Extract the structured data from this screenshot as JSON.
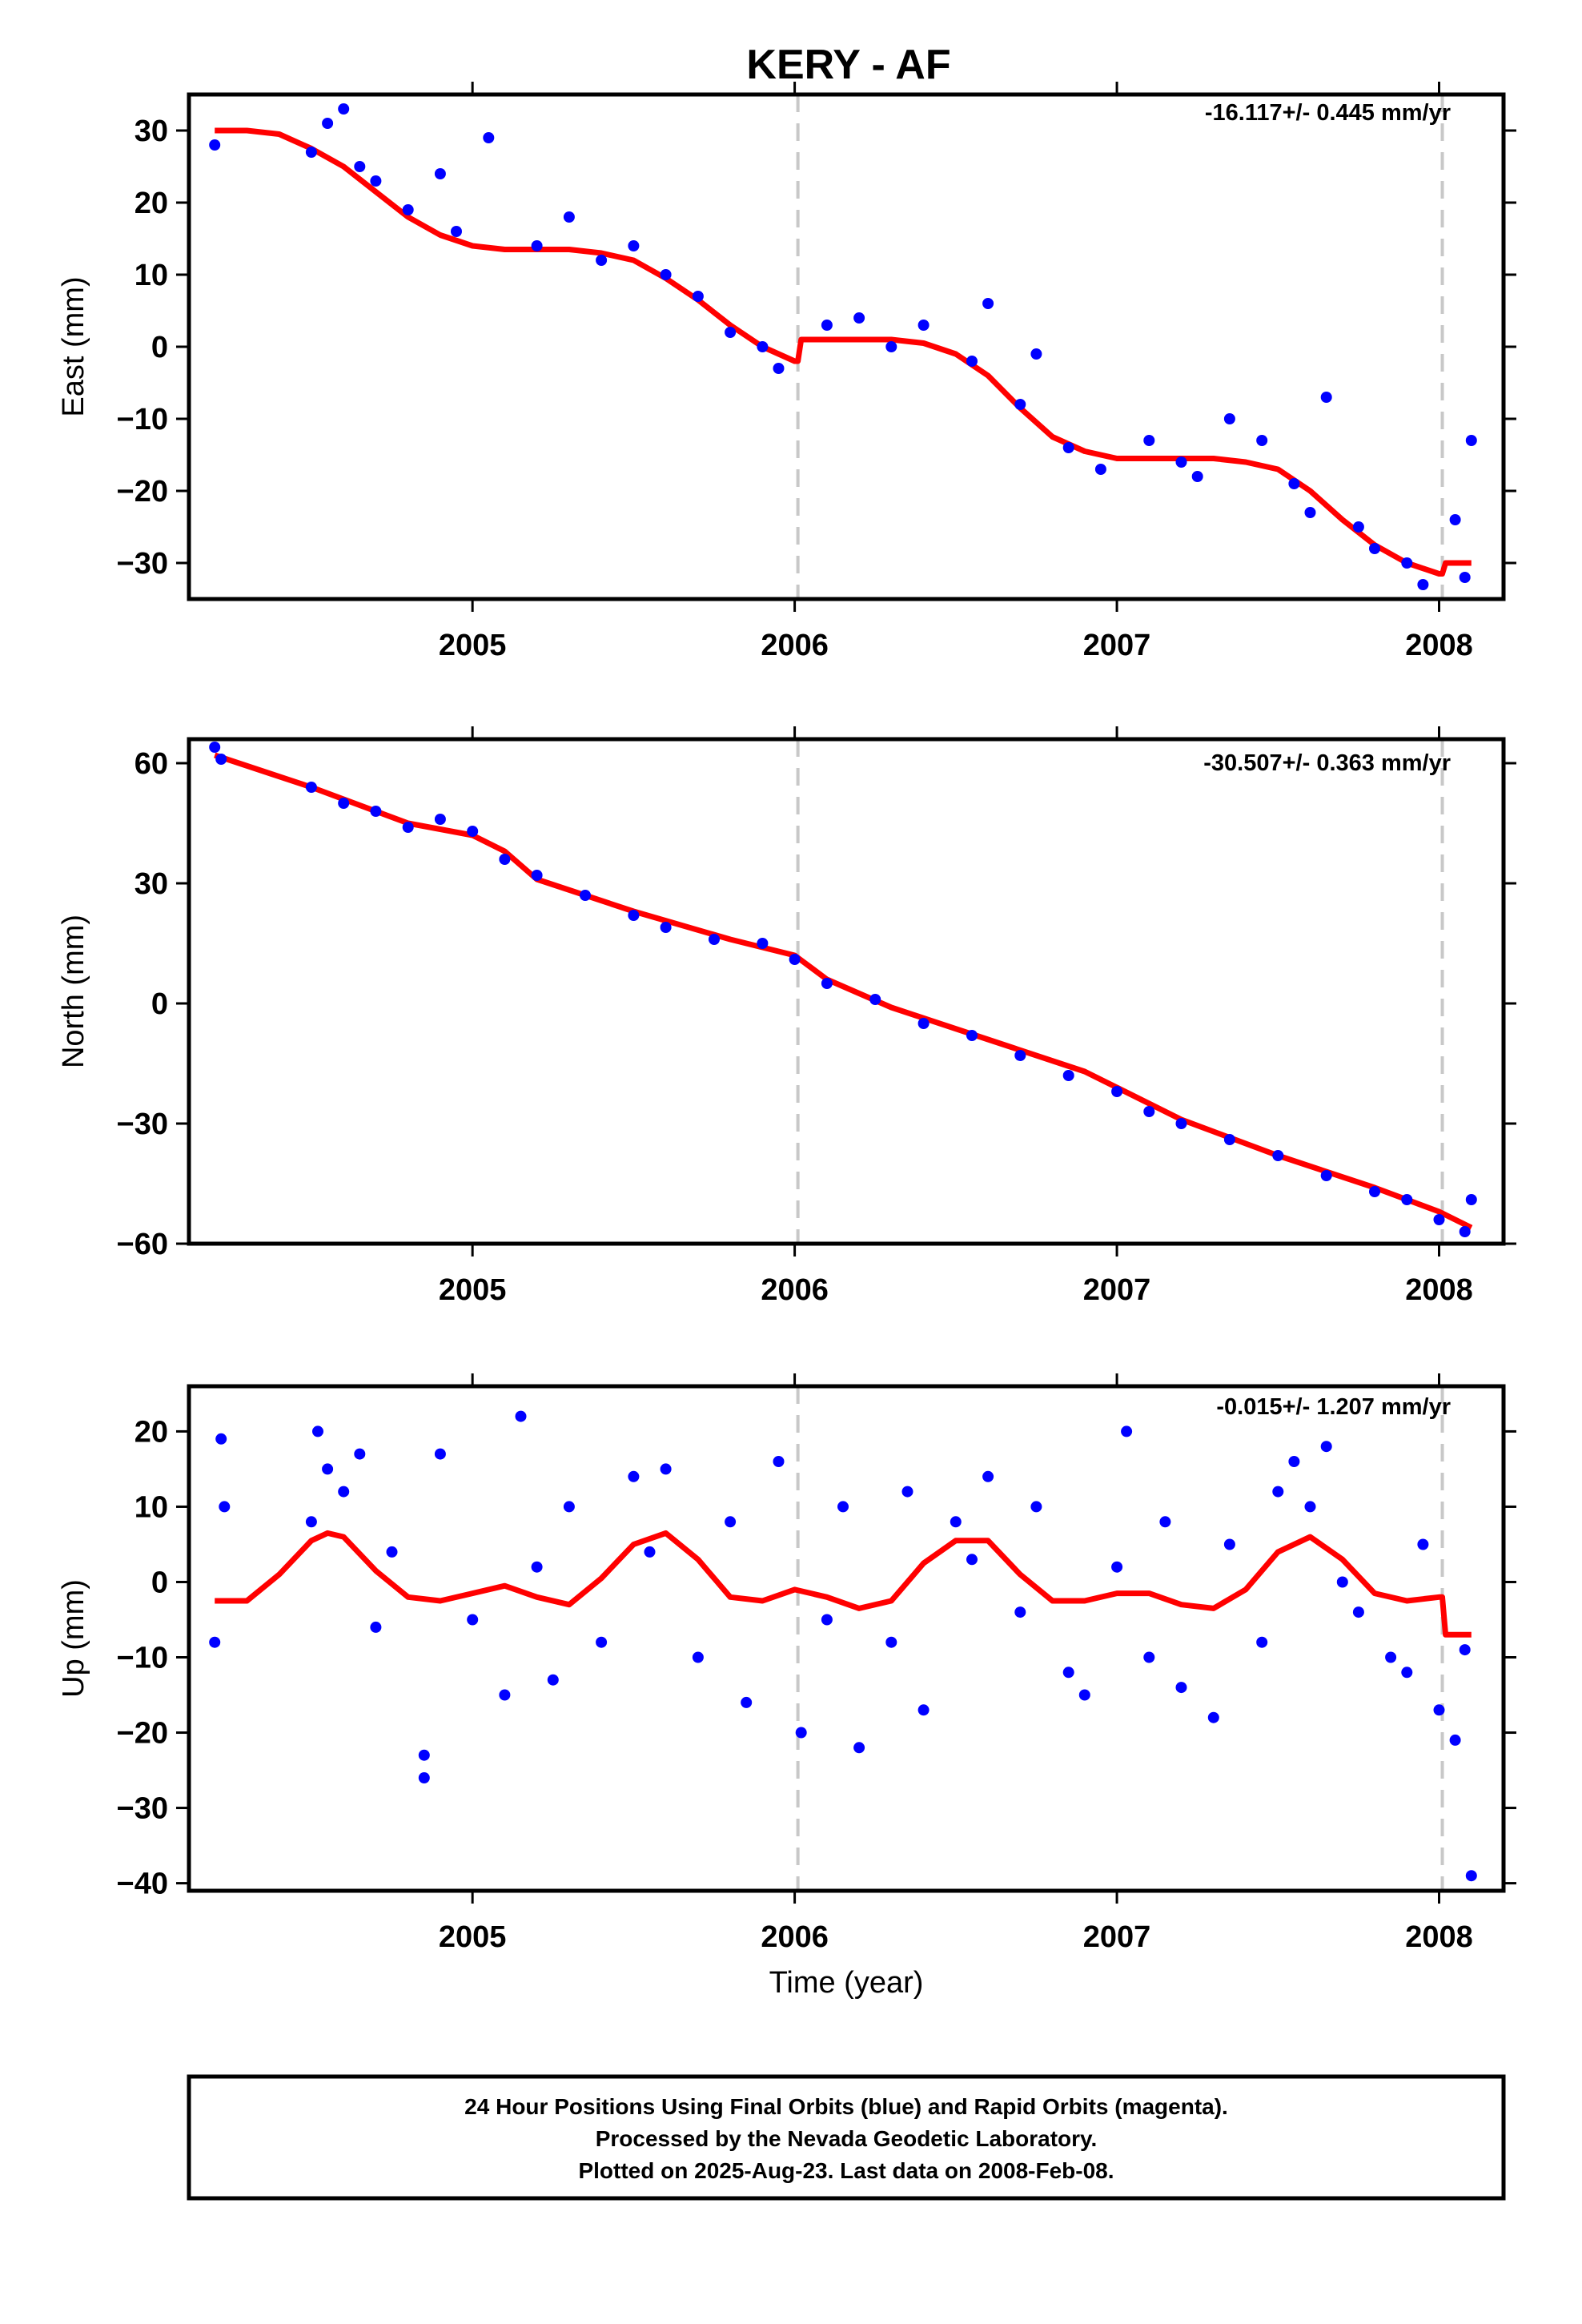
{
  "page": {
    "title": "KERY - AF",
    "x_axis_label": "Time (year)",
    "caption_lines": [
      "24 Hour Positions Using Final Orbits (blue) and Rapid Orbits (magenta).",
      "Processed by the Nevada Geodetic Laboratory.",
      "Plotted on 2025-Aug-23. Last data on 2008-Feb-08."
    ]
  },
  "colors": {
    "final_orbits": "#0000ff",
    "model_fit": "#ff0000",
    "event_lines": "#c8c8c8",
    "frame": "#000000"
  },
  "chart_data": [
    {
      "type": "scatter",
      "component": "east",
      "ylabel": "East (mm)",
      "rate_text": "-16.117+/- 0.445 mm/yr",
      "xlim": [
        2004.12,
        2008.2
      ],
      "ylim": [
        -35,
        35
      ],
      "x_ticks": [
        2005,
        2006,
        2007,
        2008
      ],
      "y_ticks": [
        30,
        20,
        10,
        0,
        -10,
        -20,
        -30
      ],
      "event_lines_x": [
        2006.01,
        2008.01
      ],
      "fit": {
        "x": [
          2004.2,
          2004.3,
          2004.4,
          2004.5,
          2004.6,
          2004.7,
          2004.8,
          2004.9,
          2005.0,
          2005.1,
          2005.2,
          2005.3,
          2005.4,
          2005.5,
          2005.6,
          2005.7,
          2005.8,
          2005.9,
          2006.0,
          2006.01,
          2006.02,
          2006.1,
          2006.2,
          2006.3,
          2006.4,
          2006.5,
          2006.6,
          2006.7,
          2006.8,
          2006.9,
          2007.0,
          2007.1,
          2007.2,
          2007.3,
          2007.4,
          2007.5,
          2007.6,
          2007.7,
          2007.8,
          2007.9,
          2008.0,
          2008.01,
          2008.02,
          2008.1
        ],
        "y": [
          30,
          30,
          29.5,
          27.5,
          25,
          21.5,
          18,
          15.5,
          14,
          13.5,
          13.5,
          13.5,
          13,
          12,
          9.5,
          6.5,
          3,
          0,
          -2,
          -2,
          1,
          1,
          1,
          1,
          0.5,
          -1,
          -4,
          -8.5,
          -12.5,
          -14.5,
          -15.5,
          -15.5,
          -15.5,
          -15.5,
          -16,
          -17,
          -20,
          -24,
          -27.5,
          -30,
          -31.5,
          -31.5,
          -30,
          -30
        ]
      },
      "points": [
        {
          "x": 2004.2,
          "y": 28
        },
        {
          "x": 2004.5,
          "y": 27
        },
        {
          "x": 2004.55,
          "y": 31
        },
        {
          "x": 2004.6,
          "y": 33
        },
        {
          "x": 2004.65,
          "y": 25
        },
        {
          "x": 2004.7,
          "y": 23
        },
        {
          "x": 2004.8,
          "y": 19
        },
        {
          "x": 2004.9,
          "y": 24
        },
        {
          "x": 2004.95,
          "y": 16
        },
        {
          "x": 2005.05,
          "y": 29
        },
        {
          "x": 2005.2,
          "y": 14
        },
        {
          "x": 2005.3,
          "y": 18
        },
        {
          "x": 2005.4,
          "y": 12
        },
        {
          "x": 2005.5,
          "y": 14
        },
        {
          "x": 2005.6,
          "y": 10
        },
        {
          "x": 2005.7,
          "y": 7
        },
        {
          "x": 2005.8,
          "y": 2
        },
        {
          "x": 2005.9,
          "y": 0
        },
        {
          "x": 2005.95,
          "y": -3
        },
        {
          "x": 2006.1,
          "y": 3
        },
        {
          "x": 2006.2,
          "y": 4
        },
        {
          "x": 2006.3,
          "y": 0
        },
        {
          "x": 2006.4,
          "y": 3
        },
        {
          "x": 2006.55,
          "y": -2
        },
        {
          "x": 2006.6,
          "y": 6
        },
        {
          "x": 2006.7,
          "y": -8
        },
        {
          "x": 2006.75,
          "y": -1
        },
        {
          "x": 2006.85,
          "y": -14
        },
        {
          "x": 2006.95,
          "y": -17
        },
        {
          "x": 2007.1,
          "y": -13
        },
        {
          "x": 2007.2,
          "y": -16
        },
        {
          "x": 2007.25,
          "y": -18
        },
        {
          "x": 2007.35,
          "y": -10
        },
        {
          "x": 2007.45,
          "y": -13
        },
        {
          "x": 2007.55,
          "y": -19
        },
        {
          "x": 2007.6,
          "y": -23
        },
        {
          "x": 2007.65,
          "y": -7
        },
        {
          "x": 2007.75,
          "y": -25
        },
        {
          "x": 2007.8,
          "y": -28
        },
        {
          "x": 2007.9,
          "y": -30
        },
        {
          "x": 2007.95,
          "y": -33
        },
        {
          "x": 2008.05,
          "y": -24
        },
        {
          "x": 2008.08,
          "y": -32
        },
        {
          "x": 2008.1,
          "y": -13
        }
      ]
    },
    {
      "type": "scatter",
      "component": "north",
      "ylabel": "North (mm)",
      "rate_text": "-30.507+/- 0.363 mm/yr",
      "xlim": [
        2004.12,
        2008.2
      ],
      "ylim": [
        -60,
        66
      ],
      "x_ticks": [
        2005,
        2006,
        2007,
        2008
      ],
      "y_ticks": [
        60,
        30,
        0,
        -30,
        -60
      ],
      "event_lines_x": [
        2006.01,
        2008.01
      ],
      "fit": {
        "x": [
          2004.2,
          2004.5,
          2004.8,
          2005.0,
          2005.1,
          2005.2,
          2005.5,
          2005.8,
          2006.0,
          2006.1,
          2006.3,
          2006.6,
          2006.9,
          2007.0,
          2007.2,
          2007.5,
          2007.8,
          2008.0,
          2008.1
        ],
        "y": [
          62,
          54,
          45,
          42,
          38,
          31,
          23,
          16,
          12,
          6,
          -1,
          -9,
          -17,
          -21,
          -29,
          -38,
          -46,
          -52,
          -56
        ]
      },
      "points": [
        {
          "x": 2004.2,
          "y": 64
        },
        {
          "x": 2004.22,
          "y": 61
        },
        {
          "x": 2004.5,
          "y": 54
        },
        {
          "x": 2004.6,
          "y": 50
        },
        {
          "x": 2004.7,
          "y": 48
        },
        {
          "x": 2004.8,
          "y": 44
        },
        {
          "x": 2004.9,
          "y": 46
        },
        {
          "x": 2005.0,
          "y": 43
        },
        {
          "x": 2005.1,
          "y": 36
        },
        {
          "x": 2005.2,
          "y": 32
        },
        {
          "x": 2005.35,
          "y": 27
        },
        {
          "x": 2005.5,
          "y": 22
        },
        {
          "x": 2005.6,
          "y": 19
        },
        {
          "x": 2005.75,
          "y": 16
        },
        {
          "x": 2005.9,
          "y": 15
        },
        {
          "x": 2006.0,
          "y": 11
        },
        {
          "x": 2006.1,
          "y": 5
        },
        {
          "x": 2006.25,
          "y": 1
        },
        {
          "x": 2006.4,
          "y": -5
        },
        {
          "x": 2006.55,
          "y": -8
        },
        {
          "x": 2006.7,
          "y": -13
        },
        {
          "x": 2006.85,
          "y": -18
        },
        {
          "x": 2007.0,
          "y": -22
        },
        {
          "x": 2007.1,
          "y": -27
        },
        {
          "x": 2007.2,
          "y": -30
        },
        {
          "x": 2007.35,
          "y": -34
        },
        {
          "x": 2007.5,
          "y": -38
        },
        {
          "x": 2007.65,
          "y": -43
        },
        {
          "x": 2007.8,
          "y": -47
        },
        {
          "x": 2007.9,
          "y": -49
        },
        {
          "x": 2008.0,
          "y": -54
        },
        {
          "x": 2008.08,
          "y": -57
        },
        {
          "x": 2008.1,
          "y": -49
        }
      ]
    },
    {
      "type": "scatter",
      "component": "up",
      "ylabel": "Up (mm)",
      "rate_text": "-0.015+/- 1.207 mm/yr",
      "xlim": [
        2004.12,
        2008.2
      ],
      "ylim": [
        -41,
        26
      ],
      "x_ticks": [
        2005,
        2006,
        2007,
        2008
      ],
      "y_ticks": [
        20,
        10,
        0,
        -10,
        -20,
        -30,
        -40
      ],
      "event_lines_x": [
        2006.01,
        2008.01
      ],
      "fit": {
        "x": [
          2004.2,
          2004.3,
          2004.4,
          2004.5,
          2004.55,
          2004.6,
          2004.7,
          2004.8,
          2004.9,
          2005.0,
          2005.1,
          2005.2,
          2005.3,
          2005.4,
          2005.5,
          2005.6,
          2005.7,
          2005.8,
          2005.9,
          2006.0,
          2006.1,
          2006.2,
          2006.3,
          2006.4,
          2006.5,
          2006.6,
          2006.7,
          2006.8,
          2006.9,
          2007.0,
          2007.1,
          2007.2,
          2007.3,
          2007.4,
          2007.5,
          2007.6,
          2007.7,
          2007.8,
          2007.9,
          2008.0,
          2008.01,
          2008.02,
          2008.1
        ],
        "y": [
          -2.5,
          -2.5,
          1,
          5.5,
          6.5,
          6,
          1.5,
          -2,
          -2.5,
          -1.5,
          -0.5,
          -2,
          -3,
          0.5,
          5,
          6.5,
          3,
          -2,
          -2.5,
          -1,
          -2,
          -3.5,
          -2.5,
          2.5,
          5.5,
          5.5,
          1,
          -2.5,
          -2.5,
          -1.5,
          -1.5,
          -3,
          -3.5,
          -1,
          4,
          6,
          3,
          -1.5,
          -2.5,
          -2,
          -2,
          -7,
          -7
        ]
      },
      "points": [
        {
          "x": 2004.2,
          "y": -8
        },
        {
          "x": 2004.22,
          "y": 19
        },
        {
          "x": 2004.23,
          "y": 10
        },
        {
          "x": 2004.5,
          "y": 8
        },
        {
          "x": 2004.52,
          "y": 20
        },
        {
          "x": 2004.55,
          "y": 15
        },
        {
          "x": 2004.6,
          "y": 12
        },
        {
          "x": 2004.65,
          "y": 17
        },
        {
          "x": 2004.7,
          "y": -6
        },
        {
          "x": 2004.75,
          "y": 4
        },
        {
          "x": 2004.85,
          "y": -23
        },
        {
          "x": 2004.85,
          "y": -26
        },
        {
          "x": 2004.9,
          "y": 17
        },
        {
          "x": 2005.0,
          "y": -5
        },
        {
          "x": 2005.1,
          "y": -15
        },
        {
          "x": 2005.15,
          "y": 22
        },
        {
          "x": 2005.2,
          "y": 2
        },
        {
          "x": 2005.25,
          "y": -13
        },
        {
          "x": 2005.3,
          "y": 10
        },
        {
          "x": 2005.4,
          "y": -8
        },
        {
          "x": 2005.5,
          "y": 14
        },
        {
          "x": 2005.55,
          "y": 4
        },
        {
          "x": 2005.6,
          "y": 15
        },
        {
          "x": 2005.7,
          "y": -10
        },
        {
          "x": 2005.8,
          "y": 8
        },
        {
          "x": 2005.85,
          "y": -16
        },
        {
          "x": 2005.95,
          "y": 16
        },
        {
          "x": 2006.02,
          "y": -20
        },
        {
          "x": 2006.1,
          "y": -5
        },
        {
          "x": 2006.15,
          "y": 10
        },
        {
          "x": 2006.2,
          "y": -22
        },
        {
          "x": 2006.3,
          "y": -8
        },
        {
          "x": 2006.35,
          "y": 12
        },
        {
          "x": 2006.4,
          "y": -17
        },
        {
          "x": 2006.5,
          "y": 8
        },
        {
          "x": 2006.55,
          "y": 3
        },
        {
          "x": 2006.6,
          "y": 14
        },
        {
          "x": 2006.7,
          "y": -4
        },
        {
          "x": 2006.75,
          "y": 10
        },
        {
          "x": 2006.85,
          "y": -12
        },
        {
          "x": 2006.9,
          "y": -15
        },
        {
          "x": 2007.0,
          "y": 2
        },
        {
          "x": 2007.03,
          "y": 20
        },
        {
          "x": 2007.1,
          "y": -10
        },
        {
          "x": 2007.15,
          "y": 8
        },
        {
          "x": 2007.2,
          "y": -14
        },
        {
          "x": 2007.3,
          "y": -18
        },
        {
          "x": 2007.35,
          "y": 5
        },
        {
          "x": 2007.45,
          "y": -8
        },
        {
          "x": 2007.5,
          "y": 12
        },
        {
          "x": 2007.55,
          "y": 16
        },
        {
          "x": 2007.6,
          "y": 10
        },
        {
          "x": 2007.65,
          "y": 18
        },
        {
          "x": 2007.7,
          "y": 0
        },
        {
          "x": 2007.75,
          "y": -4
        },
        {
          "x": 2007.85,
          "y": -10
        },
        {
          "x": 2007.9,
          "y": -12
        },
        {
          "x": 2007.95,
          "y": 5
        },
        {
          "x": 2008.0,
          "y": -17
        },
        {
          "x": 2008.05,
          "y": -21
        },
        {
          "x": 2008.08,
          "y": -9
        },
        {
          "x": 2008.1,
          "y": -39
        }
      ]
    }
  ]
}
